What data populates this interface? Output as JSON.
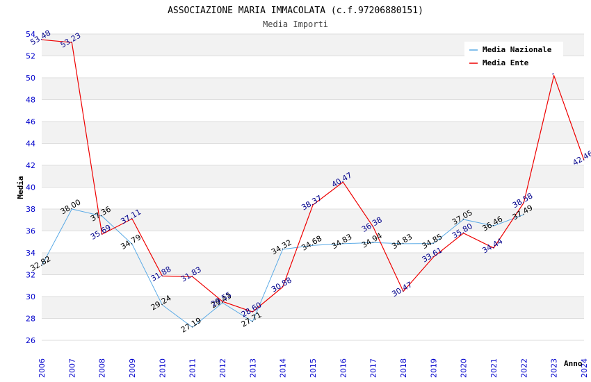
{
  "chart_data": {
    "type": "line",
    "title": "ASSOCIAZIONE MARIA IMMACOLATA (c.f.97206880151)",
    "subtitle": "Media Importi",
    "xlabel": "Anno",
    "ylabel": "Media",
    "ylim": [
      26,
      54
    ],
    "yticks": [
      "26",
      "28",
      "30",
      "32",
      "34",
      "36",
      "38",
      "40",
      "42",
      "44",
      "46",
      "48",
      "50",
      "52",
      "54"
    ],
    "categories": [
      "2006",
      "2007",
      "2008",
      "2009",
      "2010",
      "2011",
      "2012",
      "2013",
      "2014",
      "2015",
      "2016",
      "2017",
      "2018",
      "2019",
      "2020",
      "2021",
      "2022",
      "2023",
      "2024"
    ],
    "grid": "horizontal bands",
    "legend_position": "top-right",
    "series": [
      {
        "name": "Media Nazionale",
        "color": "#5aaae6",
        "label_color": "#000000",
        "values": [
          32.82,
          38.0,
          37.36,
          34.79,
          29.24,
          27.19,
          29.43,
          27.71,
          34.32,
          34.68,
          34.83,
          34.94,
          34.83,
          34.85,
          37.05,
          36.46,
          37.49,
          null,
          null
        ],
        "labels": [
          "32.82",
          "38.00",
          "37.36",
          "34.79",
          "29.24",
          "27.19",
          "29.43",
          "27.71",
          "34.32",
          "34.68",
          "34.83",
          "34.94",
          "34.83",
          "34.85",
          "37.05",
          "36.46",
          "37.49",
          "",
          ""
        ]
      },
      {
        "name": "Media Ente",
        "color": "#ee0000",
        "label_color": "#00008b",
        "values": [
          53.48,
          53.23,
          35.69,
          37.11,
          31.88,
          31.83,
          29.55,
          28.6,
          30.88,
          38.37,
          40.47,
          36.38,
          30.47,
          33.61,
          35.8,
          34.44,
          38.58,
          50.2,
          42.46
        ],
        "labels": [
          "53.48",
          "53.23",
          "35.69",
          "37.11",
          "31.88",
          "31.83",
          "29.55",
          "28.60",
          "30.88",
          "38.37",
          "40.47",
          "36.38",
          "30.47",
          "33.61",
          "35.80",
          "34.44",
          "38.58",
          "-",
          "42.46"
        ]
      }
    ]
  }
}
